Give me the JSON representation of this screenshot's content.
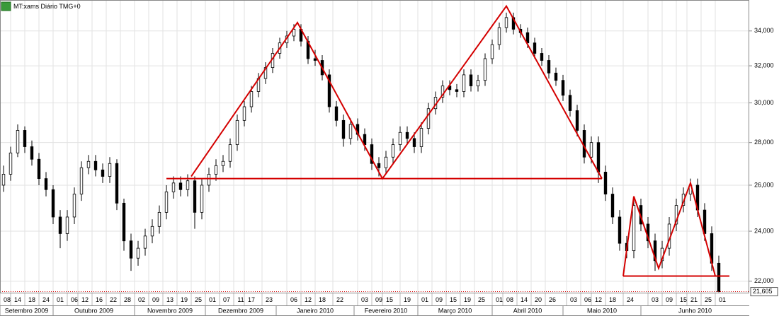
{
  "chart_data": {
    "type": "candlestick",
    "title": "MT:xams Diário TMG+0",
    "log_scale": true,
    "grid": true,
    "up_color": "#ffffff",
    "down_color": "#000000",
    "wick_color": "#000000",
    "line_color": "#d40000",
    "xlim": [
      0,
      211.6
    ],
    "ylim": [
      21540,
      35880
    ],
    "yticks": [
      {
        "value": 22000,
        "label": "22,000"
      },
      {
        "value": 24000,
        "label": "24,000"
      },
      {
        "value": 26000,
        "label": "26,000"
      },
      {
        "value": 28000,
        "label": "28,000"
      },
      {
        "value": 30000,
        "label": "30,000"
      },
      {
        "value": 32000,
        "label": "32,000"
      },
      {
        "value": 34000,
        "label": "34,000"
      }
    ],
    "xticks": [
      {
        "value": 0,
        "label": "08"
      },
      {
        "value": 3,
        "label": "14"
      },
      {
        "value": 7,
        "label": "18"
      },
      {
        "value": 11,
        "label": "24"
      },
      {
        "value": 15,
        "label": "01"
      },
      {
        "value": 19,
        "label": "06"
      },
      {
        "value": 22,
        "label": "12"
      },
      {
        "value": 26,
        "label": "16"
      },
      {
        "value": 30,
        "label": "22"
      },
      {
        "value": 34,
        "label": "28"
      },
      {
        "value": 38,
        "label": "02"
      },
      {
        "value": 42,
        "label": "09"
      },
      {
        "value": 46,
        "label": "13"
      },
      {
        "value": 50,
        "label": "19"
      },
      {
        "value": 54,
        "label": "25"
      },
      {
        "value": 58,
        "label": "01"
      },
      {
        "value": 62,
        "label": "07"
      },
      {
        "value": 66,
        "label": "11"
      },
      {
        "value": 69,
        "label": "17"
      },
      {
        "value": 74,
        "label": "23"
      },
      {
        "value": 81,
        "label": "06"
      },
      {
        "value": 85,
        "label": "12"
      },
      {
        "value": 89,
        "label": "18"
      },
      {
        "value": 94,
        "label": "22"
      },
      {
        "value": 101,
        "label": "03"
      },
      {
        "value": 105,
        "label": "09"
      },
      {
        "value": 108,
        "label": "15"
      },
      {
        "value": 113,
        "label": "19"
      },
      {
        "value": 118,
        "label": "01"
      },
      {
        "value": 122,
        "label": "09"
      },
      {
        "value": 126,
        "label": "15"
      },
      {
        "value": 130,
        "label": "19"
      },
      {
        "value": 134,
        "label": "25"
      },
      {
        "value": 139,
        "label": "01"
      },
      {
        "value": 142,
        "label": "08"
      },
      {
        "value": 146,
        "label": "14"
      },
      {
        "value": 150,
        "label": "20"
      },
      {
        "value": 154,
        "label": "26"
      },
      {
        "value": 160,
        "label": "03"
      },
      {
        "value": 164,
        "label": "06"
      },
      {
        "value": 167,
        "label": "12"
      },
      {
        "value": 171,
        "label": "18"
      },
      {
        "value": 176,
        "label": "24"
      },
      {
        "value": 183,
        "label": "03"
      },
      {
        "value": 187,
        "label": "09"
      },
      {
        "value": 191,
        "label": "15"
      },
      {
        "value": 194,
        "label": "21"
      },
      {
        "value": 198,
        "label": "25"
      },
      {
        "value": 202,
        "label": "01"
      }
    ],
    "month_ticks": [
      {
        "value": 0,
        "label": "Setembro 2009"
      },
      {
        "value": 15,
        "label": "Outubro 2009"
      },
      {
        "value": 38,
        "label": "Novembro 2009"
      },
      {
        "value": 58,
        "label": "Dezembro 2009"
      },
      {
        "value": 78,
        "label": "Janeiro 2010"
      },
      {
        "value": 100,
        "label": "Fevereiro 2010"
      },
      {
        "value": 118,
        "label": "Março 2010"
      },
      {
        "value": 139,
        "label": "Abril 2010"
      },
      {
        "value": 159,
        "label": "Maio 2010"
      },
      {
        "value": 181,
        "label": "Junho 2010"
      }
    ],
    "x": [
      1,
      3,
      5,
      7,
      9,
      11,
      13,
      15,
      17,
      19,
      21,
      23,
      25,
      27,
      29,
      31,
      33,
      35,
      37,
      39,
      41,
      43,
      45,
      47,
      49,
      51,
      53,
      55,
      57,
      59,
      61,
      63,
      65,
      67,
      69,
      71,
      73,
      75,
      77,
      79,
      81,
      83,
      85,
      87,
      89,
      91,
      93,
      95,
      97,
      99,
      101,
      103,
      105,
      107,
      109,
      111,
      113,
      115,
      117,
      119,
      121,
      123,
      125,
      127,
      129,
      131,
      133,
      135,
      137,
      139,
      141,
      143,
      145,
      147,
      149,
      151,
      153,
      155,
      157,
      159,
      161,
      163,
      165,
      167,
      169,
      171,
      173,
      175,
      177,
      179,
      181,
      183,
      185,
      187,
      189,
      191,
      193,
      195,
      197,
      199,
      201,
      203
    ],
    "open": [
      26000,
      26500,
      27500,
      28600,
      27800,
      27200,
      26300,
      25800,
      24600,
      23900,
      24600,
      25600,
      26800,
      27100,
      26700,
      26400,
      27000,
      25200,
      23600,
      22900,
      23300,
      23800,
      24200,
      24800,
      25700,
      26100,
      25800,
      26200,
      24800,
      26000,
      26500,
      26900,
      27100,
      27900,
      29100,
      29800,
      30600,
      31300,
      31900,
      32700,
      33300,
      33700,
      34100,
      33400,
      32400,
      32300,
      31500,
      29800,
      29100,
      28200,
      28900,
      28400,
      27900,
      27000,
      26800,
      27300,
      27900,
      28500,
      28200,
      27800,
      28700,
      29700,
      30300,
      30900,
      30700,
      30600,
      31500,
      30900,
      31200,
      32400,
      33200,
      34200,
      34800,
      34100,
      33900,
      33300,
      32700,
      32300,
      31600,
      31200,
      30400,
      29600,
      28600,
      27300,
      28000,
      26600,
      25600,
      24600,
      23500,
      23200,
      25100,
      24300,
      23600,
      22800,
      23300,
      24300,
      25100,
      25600,
      26000,
      24900,
      23900,
      22700
    ],
    "high": [
      26900,
      27800,
      28900,
      28800,
      28100,
      27500,
      26600,
      26000,
      24900,
      24900,
      25900,
      27100,
      27400,
      27400,
      27000,
      27300,
      27200,
      25400,
      23900,
      23600,
      24100,
      24500,
      25100,
      26000,
      26400,
      26400,
      26500,
      26400,
      26300,
      26800,
      27200,
      27400,
      28200,
      29400,
      30100,
      30900,
      31600,
      32200,
      33000,
      33600,
      34000,
      34400,
      34400,
      33700,
      32900,
      32600,
      31800,
      30100,
      29400,
      29200,
      29200,
      28700,
      28200,
      27300,
      27600,
      28200,
      28800,
      28800,
      28500,
      29000,
      30000,
      30600,
      31200,
      31200,
      31000,
      31800,
      31800,
      31500,
      32700,
      33500,
      34500,
      35100,
      35100,
      34400,
      34200,
      33600,
      33000,
      32600,
      31900,
      31500,
      30700,
      29900,
      28900,
      28300,
      28300,
      26900,
      25900,
      24900,
      23800,
      25400,
      25400,
      24600,
      23900,
      23600,
      24600,
      25400,
      25900,
      26300,
      26300,
      25200,
      24200,
      23000
    ],
    "low": [
      25700,
      26200,
      27300,
      27500,
      26900,
      26000,
      25500,
      24300,
      23300,
      23600,
      24300,
      25300,
      26500,
      26400,
      26100,
      26100,
      24900,
      23200,
      22400,
      22600,
      23000,
      23500,
      23900,
      24500,
      25400,
      25500,
      25500,
      24100,
      24500,
      25700,
      26200,
      26600,
      26800,
      27600,
      28800,
      29500,
      30300,
      31000,
      31600,
      32400,
      33000,
      33400,
      33100,
      32100,
      32000,
      31200,
      29500,
      28800,
      27800,
      27900,
      28100,
      27600,
      26700,
      26400,
      26500,
      27000,
      27600,
      27900,
      27500,
      27500,
      28400,
      29400,
      30000,
      30400,
      30300,
      30300,
      30600,
      30600,
      30900,
      32100,
      32900,
      33900,
      33800,
      33600,
      33000,
      32400,
      32000,
      31300,
      30900,
      30100,
      29300,
      28300,
      27000,
      27000,
      26100,
      25300,
      24300,
      23200,
      22900,
      22900,
      24000,
      23300,
      22400,
      22500,
      23000,
      24000,
      24800,
      25300,
      24600,
      23600,
      22400,
      21580
    ],
    "close": [
      26500,
      27500,
      28600,
      27800,
      27200,
      26300,
      25800,
      24600,
      23900,
      24600,
      25600,
      26800,
      27100,
      26700,
      26400,
      27000,
      25200,
      23600,
      22900,
      23300,
      23800,
      24200,
      24800,
      25700,
      26100,
      25800,
      26200,
      24800,
      26000,
      26500,
      26900,
      27100,
      27900,
      29100,
      29800,
      30600,
      31300,
      31900,
      32700,
      33300,
      33700,
      34100,
      33400,
      32400,
      32300,
      31500,
      29800,
      29100,
      28200,
      28900,
      28400,
      27900,
      27000,
      26800,
      27300,
      27900,
      28500,
      28200,
      27800,
      28700,
      29700,
      30300,
      30900,
      30700,
      30600,
      31500,
      30900,
      31200,
      32400,
      33200,
      34200,
      34800,
      34100,
      33900,
      33300,
      32700,
      32300,
      31600,
      31200,
      30400,
      29600,
      28600,
      27300,
      28000,
      26600,
      25600,
      24600,
      23500,
      23200,
      25100,
      24300,
      23600,
      22800,
      23300,
      24300,
      25100,
      25600,
      26000,
      24900,
      23900,
      22700,
      21605
    ],
    "lines": [
      {
        "x": [
          54,
          84,
          108,
          143,
          170
        ],
        "y": [
          26400,
          34500,
          26300,
          35500,
          26300
        ]
      },
      {
        "x": [
          47,
          170
        ],
        "y": [
          26300,
          26300
        ]
      },
      {
        "x": [
          176,
          179,
          186,
          195,
          202
        ],
        "y": [
          22200,
          25500,
          22500,
          26100,
          22200
        ]
      },
      {
        "x": [
          176,
          206
        ],
        "y": [
          22200,
          22200
        ]
      }
    ],
    "last_price": {
      "value": 21605,
      "label": "21,605"
    }
  }
}
